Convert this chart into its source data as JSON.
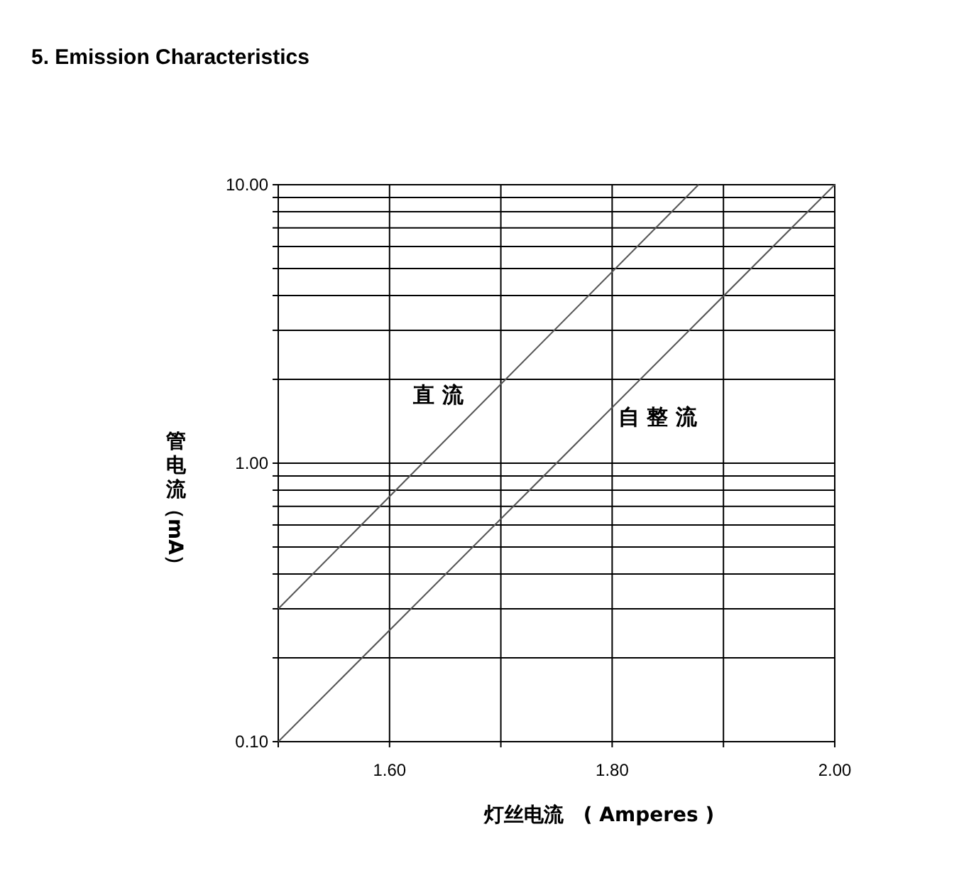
{
  "chart_data": {
    "type": "line",
    "title": "5.  Emission Characteristics",
    "xlabel": "灯丝电流　( Amperes )",
    "ylabel": "管电流（mA）",
    "series": [
      {
        "name": "直 流",
        "color": "#555555",
        "x": [
          1.5,
          1.8776
        ],
        "values": [
          0.3,
          10
        ]
      },
      {
        "name": "自 整 流",
        "color": "#555555",
        "x": [
          1.5,
          2.0
        ],
        "values": [
          0.1,
          10
        ]
      }
    ],
    "xlim": [
      1.5,
      2.0
    ],
    "xticks": [
      {
        "value": 1.5,
        "label": null
      },
      {
        "value": 1.6,
        "label": "1.60"
      },
      {
        "value": 1.7,
        "label": null
      },
      {
        "value": 1.8,
        "label": "1.80"
      },
      {
        "value": 1.9,
        "label": null
      },
      {
        "value": 2.0,
        "label": "2.00"
      }
    ],
    "ylim": [
      0.1,
      10
    ],
    "yticks": [
      {
        "value": 0.1,
        "label": "0.10"
      },
      {
        "value": 0.2,
        "label": null
      },
      {
        "value": 0.3,
        "label": null
      },
      {
        "value": 0.4,
        "label": null
      },
      {
        "value": 0.5,
        "label": null
      },
      {
        "value": 0.6,
        "label": null
      },
      {
        "value": 0.7,
        "label": null
      },
      {
        "value": 0.8,
        "label": null
      },
      {
        "value": 0.9,
        "label": null
      },
      {
        "value": 1,
        "label": "1.00"
      },
      {
        "value": 2,
        "label": null
      },
      {
        "value": 3,
        "label": null
      },
      {
        "value": 4,
        "label": null
      },
      {
        "value": 5,
        "label": null
      },
      {
        "value": 6,
        "label": null
      },
      {
        "value": 7,
        "label": null
      },
      {
        "value": 8,
        "label": null
      },
      {
        "value": 9,
        "label": null
      },
      {
        "value": 10,
        "label": "10.00"
      }
    ],
    "log": true,
    "grid": true,
    "marker": "none",
    "line_style": "solid"
  }
}
